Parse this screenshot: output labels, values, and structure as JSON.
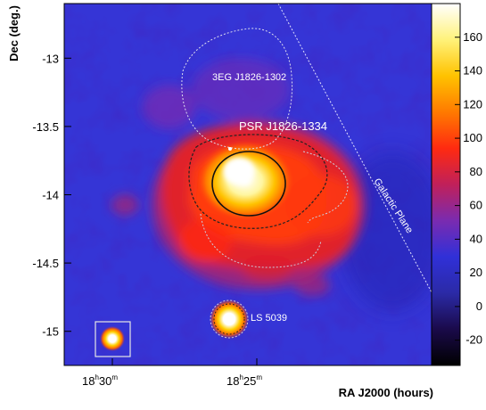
{
  "chart_data": {
    "type": "heatmap",
    "xlabel": "RA J2000 (hours)",
    "ylabel": "Dec (deg.)",
    "x_ticks": [
      {
        "main": "18",
        "h": "h",
        "min": "30",
        "m": "m"
      },
      {
        "main": "18",
        "h": "h",
        "min": "25",
        "m": "m"
      }
    ],
    "y_ticks": [
      "-13",
      "-13.5",
      "-14",
      "-14.5",
      "-15"
    ],
    "y_tick_values": [
      -13,
      -13.5,
      -14,
      -14.5,
      -15
    ],
    "ylim": [
      -15.25,
      -12.6
    ],
    "colorbar": {
      "ticks": [
        "160",
        "140",
        "120",
        "100",
        "80",
        "60",
        "40",
        "20",
        "0",
        "-20"
      ],
      "tick_values": [
        160,
        140,
        120,
        100,
        80,
        60,
        40,
        20,
        0,
        -20
      ],
      "range": [
        -35,
        180
      ],
      "colors": [
        "#000000",
        "#1a0a4a",
        "#2b2aa6",
        "#3030d8",
        "#7a2bb0",
        "#c0205a",
        "#ff2a10",
        "#ff7a00",
        "#ffc200",
        "#fff27a",
        "#ffffff"
      ]
    },
    "annotations": [
      {
        "label": "3EG J1826-1302"
      },
      {
        "label": "PSR J1826-1334"
      },
      {
        "label": "Galactic Plane"
      },
      {
        "label": "LS 5039"
      }
    ],
    "sources": [
      {
        "name": "PSR J1826-1334",
        "dec": -13.82,
        "peak": 175
      },
      {
        "name": "LS 5039",
        "dec": -14.83,
        "peak": 170
      }
    ]
  }
}
